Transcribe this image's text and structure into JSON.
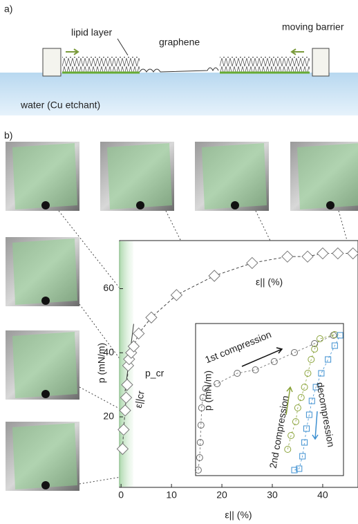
{
  "panel_labels": [
    "a)",
    "b)"
  ],
  "schematic": {
    "labels": [
      "lipid layer",
      "graphene",
      "moving barrier",
      "water (Cu etchant)"
    ]
  },
  "chart_data": [
    {
      "type": "scatter",
      "x_label": "ε|| (%)",
      "y_label": "p (mN/m)",
      "x": [
        0.3,
        0.5,
        0.8,
        1.0,
        1.2,
        1.4,
        1.6,
        2.0,
        2.5,
        3.5,
        6,
        11,
        18.5,
        26,
        33,
        37,
        40,
        43,
        46
      ],
      "values": [
        10,
        16,
        22,
        26,
        30,
        36,
        38,
        40,
        42,
        46,
        51,
        58,
        64,
        68,
        70,
        70,
        71,
        71,
        71
      ],
      "color": "#777777",
      "xlim": [
        -0.3,
        47
      ],
      "ylim": [
        -2,
        75
      ],
      "xticks": [
        0,
        10,
        20,
        30,
        40
      ],
      "yticks": [
        20,
        40,
        60
      ],
      "annotations": [
        "p_cr",
        "ε||cr",
        "ε|| (%)"
      ]
    },
    {
      "type": "scatter",
      "x_label": "ε|| (%)",
      "y_label": "p (mN/m)",
      "xlim": [
        0,
        220
      ],
      "ylim": [
        0,
        220
      ],
      "series": [
        {
          "name": "1st compression",
          "color": "#666666",
          "marker": "circle",
          "x": [
            4,
            6,
            7,
            8,
            9,
            11,
            15,
            32,
            62,
            89,
            117,
            147,
            177,
            205
          ],
          "values": [
            8,
            26,
            48,
            73,
            98,
            113,
            126,
            133,
            148,
            153,
            165,
            178,
            191,
            203
          ]
        },
        {
          "name": "2nd compression",
          "color": "#8aa33a",
          "marker": "circle",
          "x": [
            137,
            142,
            149,
            152,
            157,
            162,
            167,
            172,
            177,
            185,
            207
          ],
          "values": [
            38,
            58,
            78,
            98,
            113,
            128,
            148,
            168,
            183,
            198,
            204
          ]
        },
        {
          "name": "decompression",
          "color": "#3c8fd0",
          "marker": "square",
          "x": [
            147,
            154,
            159,
            162,
            165,
            169,
            173,
            179,
            187,
            197,
            207,
            215
          ],
          "values": [
            8,
            10,
            28,
            48,
            68,
            88,
            108,
            128,
            148,
            168,
            188,
            203
          ]
        }
      ]
    }
  ]
}
